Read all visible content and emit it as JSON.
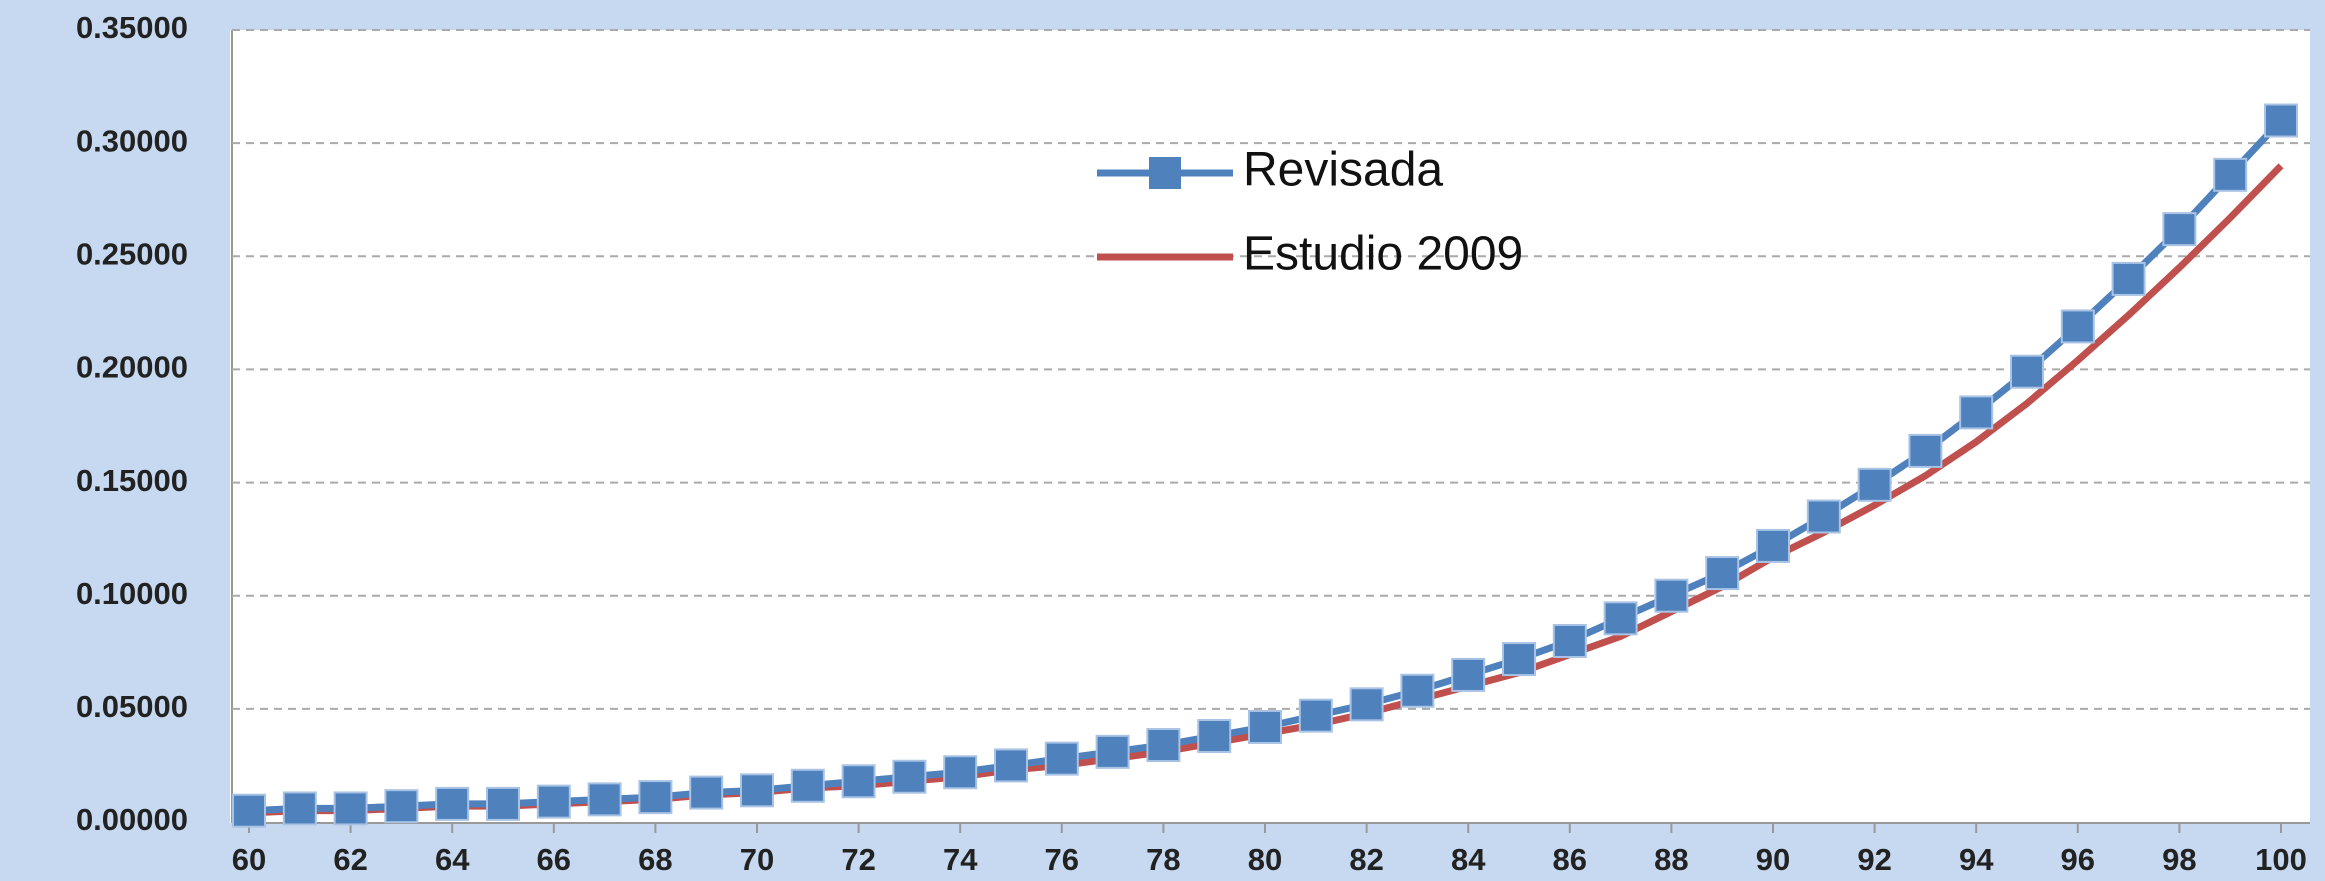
{
  "chart_data": {
    "type": "line",
    "x": [
      60,
      61,
      62,
      63,
      64,
      65,
      66,
      67,
      68,
      69,
      70,
      71,
      72,
      73,
      74,
      75,
      76,
      77,
      78,
      79,
      80,
      81,
      82,
      83,
      84,
      85,
      86,
      87,
      88,
      89,
      90,
      91,
      92,
      93,
      94,
      95,
      96,
      97,
      98,
      99,
      100
    ],
    "series": [
      {
        "name": "Revisada",
        "color": "#4f81bd",
        "marker": "square",
        "values": [
          0.005,
          0.006,
          0.006,
          0.007,
          0.008,
          0.008,
          0.009,
          0.01,
          0.011,
          0.013,
          0.014,
          0.016,
          0.018,
          0.02,
          0.022,
          0.025,
          0.028,
          0.031,
          0.034,
          0.038,
          0.042,
          0.047,
          0.052,
          0.058,
          0.065,
          0.072,
          0.08,
          0.09,
          0.1,
          0.11,
          0.122,
          0.135,
          0.149,
          0.164,
          0.181,
          0.199,
          0.219,
          0.24,
          0.262,
          0.286,
          0.31
        ]
      },
      {
        "name": "Estudio 2009",
        "color": "#c0504d",
        "values": [
          0.004,
          0.005,
          0.005,
          0.006,
          0.007,
          0.007,
          0.008,
          0.009,
          0.01,
          0.012,
          0.013,
          0.015,
          0.016,
          0.018,
          0.02,
          0.023,
          0.025,
          0.028,
          0.031,
          0.035,
          0.039,
          0.043,
          0.048,
          0.054,
          0.06,
          0.066,
          0.074,
          0.082,
          0.093,
          0.104,
          0.117,
          0.128,
          0.14,
          0.153,
          0.168,
          0.185,
          0.204,
          0.224,
          0.245,
          0.267,
          0.29
        ]
      }
    ],
    "xlim": [
      60,
      100
    ],
    "xticks": [
      60,
      62,
      64,
      66,
      68,
      70,
      72,
      74,
      76,
      78,
      80,
      82,
      84,
      86,
      88,
      90,
      92,
      94,
      96,
      98,
      100
    ],
    "ylim": [
      0,
      0.35
    ],
    "yticks": [
      {
        "value": 0,
        "label": "0.00000"
      },
      {
        "value": 0.05,
        "label": "0.05000"
      },
      {
        "value": 0.1,
        "label": "0.10000"
      },
      {
        "value": 0.15,
        "label": "0.15000"
      },
      {
        "value": 0.2,
        "label": "0.20000"
      },
      {
        "value": 0.25,
        "label": "0.25000"
      },
      {
        "value": 0.3,
        "label": "0.30000"
      },
      {
        "value": 0.35,
        "label": "0.35000"
      }
    ],
    "grid": true
  }
}
